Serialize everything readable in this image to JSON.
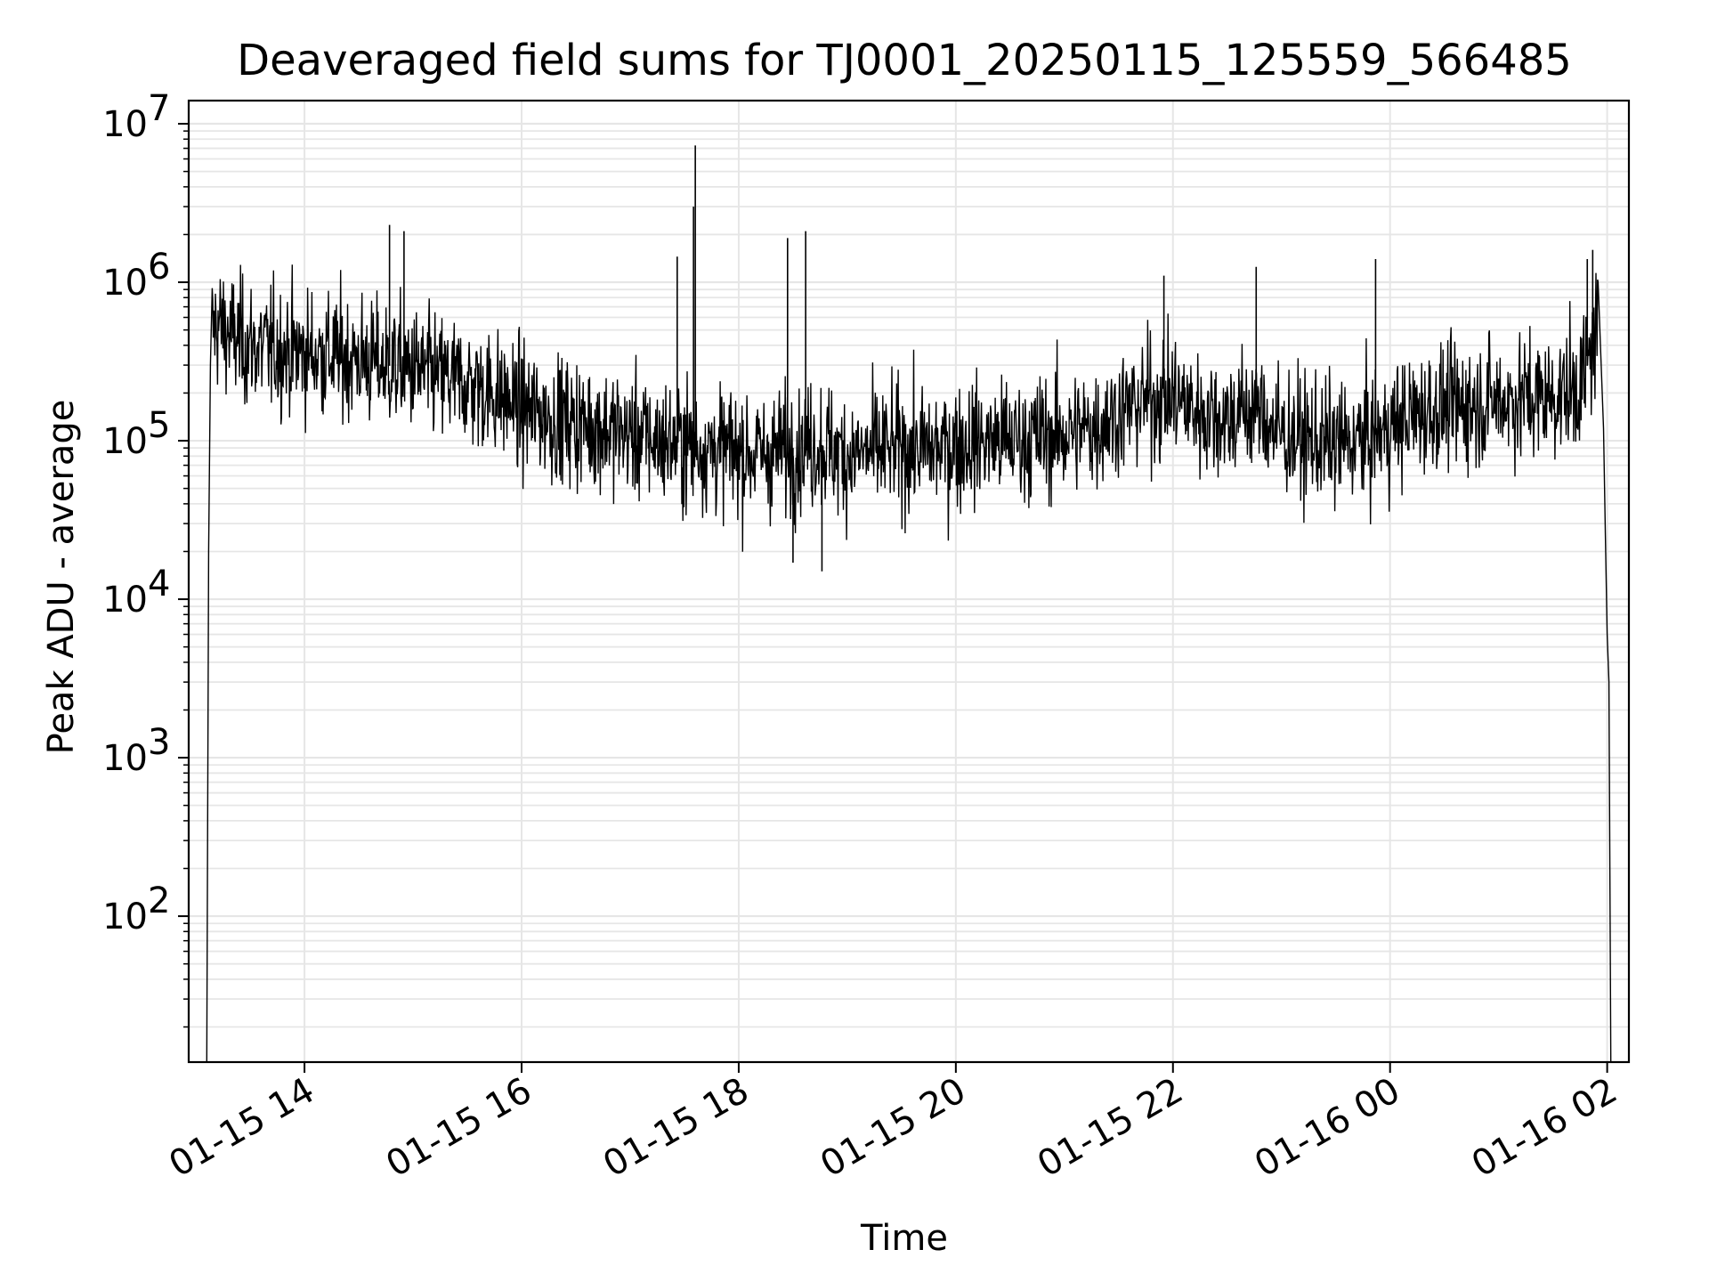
{
  "chart_data": {
    "type": "line",
    "title": "Deaveraged field sums for TJ0001_20250115_125559_566485",
    "xlabel": "Time",
    "ylabel": "Peak ADU - average",
    "yscale": "log",
    "ylim": [
      12,
      14000000
    ],
    "xlim": [
      "2025-01-15 12:56",
      "2025-01-16 02:12"
    ],
    "x_ticks": [
      {
        "t": "2025-01-15 14:00",
        "label": "01-15 14"
      },
      {
        "t": "2025-01-15 16:00",
        "label": "01-15 16"
      },
      {
        "t": "2025-01-15 18:00",
        "label": "01-15 18"
      },
      {
        "t": "2025-01-15 20:00",
        "label": "01-15 20"
      },
      {
        "t": "2025-01-15 22:00",
        "label": "01-15 22"
      },
      {
        "t": "2025-01-16 00:00",
        "label": "01-16 00"
      },
      {
        "t": "2025-01-16 02:00",
        "label": "01-16 02"
      }
    ],
    "y_ticks": [
      {
        "v": 100,
        "base": "10",
        "exp": "2"
      },
      {
        "v": 1000,
        "base": "10",
        "exp": "3"
      },
      {
        "v": 10000,
        "base": "10",
        "exp": "4"
      },
      {
        "v": 100000,
        "base": "10",
        "exp": "5"
      },
      {
        "v": 1000000,
        "base": "10",
        "exp": "6"
      },
      {
        "v": 10000000,
        "base": "10",
        "exp": "7"
      }
    ],
    "grid": true,
    "line_color": "#000000",
    "grid_color": "#e6e6e6",
    "series": [
      {
        "x": [
          "2025-01-15 13:06",
          "2025-01-15 13:07",
          "2025-01-15 13:08",
          "2025-01-15 13:09",
          "2025-01-15 13:12",
          "2025-01-15 13:20",
          "2025-01-15 13:30",
          "2025-01-15 13:40",
          "2025-01-15 13:50",
          "2025-01-15 14:00",
          "2025-01-15 14:10",
          "2025-01-15 14:20",
          "2025-01-15 14:30",
          "2025-01-15 14:45",
          "2025-01-15 15:00",
          "2025-01-15 15:15",
          "2025-01-15 15:30",
          "2025-01-15 15:45",
          "2025-01-15 16:00",
          "2025-01-15 16:15",
          "2025-01-15 16:30",
          "2025-01-15 16:45",
          "2025-01-15 17:00",
          "2025-01-15 17:15",
          "2025-01-15 17:30",
          "2025-01-15 17:45",
          "2025-01-15 18:00",
          "2025-01-15 18:15",
          "2025-01-15 18:30",
          "2025-01-15 18:45",
          "2025-01-15 19:00",
          "2025-01-15 19:15",
          "2025-01-15 19:30",
          "2025-01-15 19:45",
          "2025-01-15 20:00",
          "2025-01-15 20:15",
          "2025-01-15 20:30",
          "2025-01-15 20:45",
          "2025-01-15 21:00",
          "2025-01-15 21:15",
          "2025-01-15 21:30",
          "2025-01-15 21:45",
          "2025-01-15 22:00",
          "2025-01-15 22:15",
          "2025-01-15 22:30",
          "2025-01-15 22:45",
          "2025-01-15 23:00",
          "2025-01-15 23:15",
          "2025-01-15 23:30",
          "2025-01-15 23:45",
          "2025-01-16 00:00",
          "2025-01-16 00:15",
          "2025-01-16 00:30",
          "2025-01-16 00:45",
          "2025-01-16 01:00",
          "2025-01-16 01:15",
          "2025-01-16 01:30",
          "2025-01-16 01:45",
          "2025-01-16 01:50",
          "2025-01-16 01:55",
          "2025-01-16 01:58",
          "2025-01-16 01:59",
          "2025-01-16 02:00",
          "2025-01-16 02:01",
          "2025-01-16 02:02"
        ],
        "y": [
          12,
          20000,
          300000,
          500000,
          550000,
          450000,
          400000,
          380000,
          370000,
          360000,
          350000,
          340000,
          330000,
          300000,
          280000,
          250000,
          230000,
          200000,
          160000,
          140000,
          130000,
          120000,
          110000,
          100000,
          95000,
          90000,
          85000,
          82000,
          90000,
          95000,
          80000,
          85000,
          90000,
          88000,
          95000,
          100000,
          100000,
          105000,
          110000,
          120000,
          150000,
          180000,
          190000,
          150000,
          140000,
          160000,
          110000,
          100000,
          95000,
          100000,
          120000,
          150000,
          160000,
          170000,
          180000,
          185000,
          190000,
          220000,
          320000,
          550000,
          120000,
          25000,
          6000,
          3000,
          12
        ]
      }
    ],
    "spikes": [
      {
        "x": "2025-01-15 14:47",
        "y": 2300000
      },
      {
        "x": "2025-01-15 14:55",
        "y": 2100000
      },
      {
        "x": "2025-01-15 17:36",
        "y": 7300000
      },
      {
        "x": "2025-01-15 17:35",
        "y": 3000000
      },
      {
        "x": "2025-01-15 17:26",
        "y": 1450000
      },
      {
        "x": "2025-01-15 18:27",
        "y": 1900000
      },
      {
        "x": "2025-01-15 18:37",
        "y": 2100000
      },
      {
        "x": "2025-01-15 21:55",
        "y": 1100000
      },
      {
        "x": "2025-01-15 22:46",
        "y": 1250000
      },
      {
        "x": "2025-01-15 23:52",
        "y": 1400000
      },
      {
        "x": "2025-01-16 01:49",
        "y": 1400000
      },
      {
        "x": "2025-01-16 01:52",
        "y": 1600000
      },
      {
        "x": "2025-01-15 18:46",
        "y": 15000
      },
      {
        "x": "2025-01-15 18:30",
        "y": 17000
      }
    ]
  }
}
